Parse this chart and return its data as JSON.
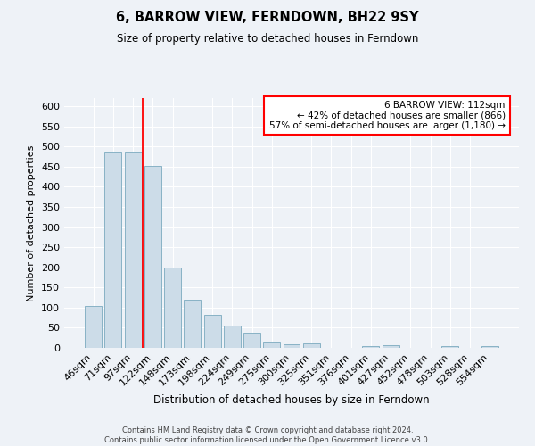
{
  "title": "6, BARROW VIEW, FERNDOWN, BH22 9SY",
  "subtitle": "Size of property relative to detached houses in Ferndown",
  "xlabel": "Distribution of detached houses by size in Ferndown",
  "ylabel": "Number of detached properties",
  "bar_labels": [
    "46sqm",
    "71sqm",
    "97sqm",
    "122sqm",
    "148sqm",
    "173sqm",
    "198sqm",
    "224sqm",
    "249sqm",
    "275sqm",
    "300sqm",
    "325sqm",
    "351sqm",
    "376sqm",
    "401sqm",
    "427sqm",
    "452sqm",
    "478sqm",
    "503sqm",
    "528sqm",
    "554sqm"
  ],
  "bar_values": [
    105,
    487,
    487,
    452,
    200,
    120,
    82,
    55,
    38,
    15,
    9,
    10,
    0,
    0,
    4,
    6,
    0,
    0,
    5,
    0,
    5
  ],
  "bar_color": "#ccdce8",
  "bar_edge_color": "#7aaabf",
  "annotation_line1": "6 BARROW VIEW: 112sqm",
  "annotation_line2": "← 42% of detached houses are smaller (866)",
  "annotation_line3": "57% of semi-detached houses are larger (1,180) →",
  "box_color": "#cc0000",
  "ylim": [
    0,
    620
  ],
  "yticks": [
    0,
    50,
    100,
    150,
    200,
    250,
    300,
    350,
    400,
    450,
    500,
    550,
    600
  ],
  "footer_line1": "Contains HM Land Registry data © Crown copyright and database right 2024.",
  "footer_line2": "Contains public sector information licensed under the Open Government Licence v3.0.",
  "bg_color": "#eef2f7",
  "grid_color": "#ffffff"
}
